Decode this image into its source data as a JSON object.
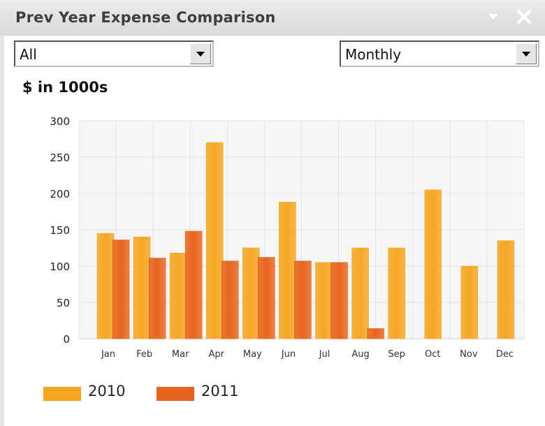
{
  "widget": {
    "title": "Prev Year Expense Comparison",
    "filter_value": "All",
    "period_value": "Monthly",
    "units_label": "$ in 1000s"
  },
  "icons": {
    "collapse": "triangle-down-icon",
    "close": "close-icon",
    "dropdown": "chevron-down-icon"
  },
  "colors": {
    "series_2010": "#f5a623",
    "series_2011": "#e8641c",
    "plot_bg": "#f6f6f6",
    "title_text": "#3f3f3f"
  },
  "chart_data": {
    "type": "bar",
    "title": "",
    "xlabel": "",
    "ylabel": "$ in 1000s",
    "ylim": [
      0,
      300
    ],
    "yticks": [
      0,
      50,
      100,
      150,
      200,
      250,
      300
    ],
    "grid": true,
    "legend_position": "bottom-left",
    "categories": [
      "Jan",
      "Feb",
      "Mar",
      "Apr",
      "May",
      "Jun",
      "Jul",
      "Aug",
      "Sep",
      "Oct",
      "Nov",
      "Dec"
    ],
    "series": [
      {
        "name": "2010",
        "color": "#f5a623",
        "values": [
          145,
          140,
          118,
          270,
          125,
          188,
          105,
          125,
          125,
          205,
          100,
          135
        ]
      },
      {
        "name": "2011",
        "color": "#e8641c",
        "values": [
          136,
          111,
          148,
          107,
          112,
          107,
          105,
          14,
          null,
          null,
          null,
          null
        ]
      }
    ]
  }
}
